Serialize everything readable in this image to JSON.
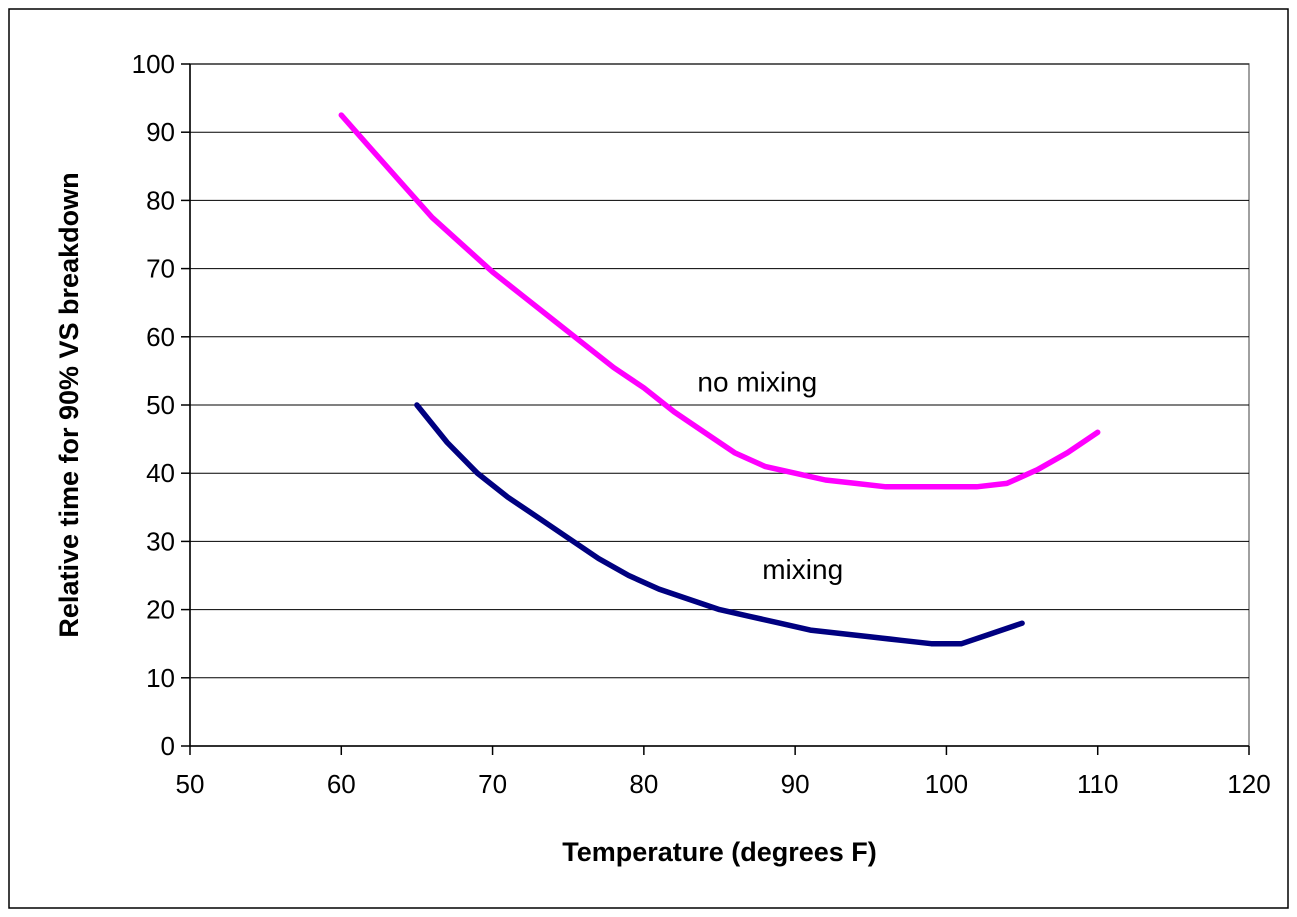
{
  "chart_data": {
    "type": "line",
    "title": "",
    "xlabel": "Temperature (degrees F)",
    "ylabel": "Relative time for 90% VS breakdown",
    "xlim": [
      50,
      120
    ],
    "ylim": [
      0,
      100
    ],
    "xticks": [
      50,
      60,
      70,
      80,
      90,
      100,
      110,
      120
    ],
    "yticks": [
      0,
      10,
      20,
      30,
      40,
      50,
      60,
      70,
      80,
      90,
      100
    ],
    "grid": "horizontal",
    "legend": "none",
    "series": [
      {
        "color": "#FF00FF",
        "x": [
          60,
          62,
          64,
          66,
          68,
          70,
          72,
          74,
          76,
          78,
          80,
          82,
          84,
          86,
          88,
          90,
          92,
          94,
          96,
          98,
          100,
          102,
          104,
          106,
          108,
          110
        ],
        "y": [
          92.5,
          87.5,
          82.5,
          77.5,
          73.5,
          69.5,
          66,
          62.5,
          59,
          55.5,
          52.5,
          49,
          46,
          43,
          41,
          40,
          39,
          38.5,
          38,
          38,
          38,
          38,
          38.5,
          40.5,
          43,
          46
        ]
      },
      {
        "color": "#000080",
        "x": [
          65,
          67,
          69,
          71,
          73,
          75,
          77,
          79,
          81,
          83,
          85,
          87,
          89,
          91,
          93,
          95,
          97,
          99,
          101,
          103,
          105
        ],
        "y": [
          50,
          44.5,
          40,
          36.5,
          33.5,
          30.5,
          27.5,
          25,
          23,
          21.5,
          20,
          19,
          18,
          17,
          16.5,
          16,
          15.5,
          15,
          15,
          16.5,
          18
        ]
      }
    ],
    "annotations": [
      {
        "text": "no mixing",
        "x": 87.5,
        "y": 52
      },
      {
        "text": "mixing",
        "x": 90.5,
        "y": 24.5
      }
    ]
  }
}
